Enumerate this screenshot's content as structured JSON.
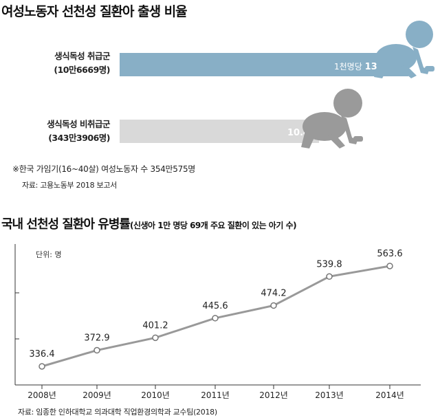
{
  "section1": {
    "title": "여성노동자 선천성 질환아 출생 비율",
    "note": "※한국 가임기(16~40살) 여성노동자 수 354만575명",
    "source": "자료: 고용노동부 2018 보고서"
  },
  "section2": {
    "title": "국내 선천성 질환아 유병률",
    "subtitle": "(신생아 1만 명당 69개 주요 질환이 있는 아기 수)",
    "unit": "단위: 명",
    "source": "자료: 임종한 인하대학교 의과대학 직업환경의학과 교수팀(2018)"
  },
  "chart_data": [
    {
      "type": "bar",
      "orientation": "horizontal",
      "title": "여성노동자 선천성 질환아 출생 비율",
      "categories": [
        {
          "line1": "생식독성 취급군",
          "line2": "(10만6669명)"
        },
        {
          "line1": "생식독성 비취급군",
          "line2": "(343만3906명)"
        }
      ],
      "values": [
        13.9,
        10.4
      ],
      "value_labels": [
        {
          "prefix": "1천명당 ",
          "value": "13.9명"
        },
        {
          "prefix": "",
          "value": "10.4명"
        }
      ],
      "colors": [
        "#88afc6",
        "#d9d9d9"
      ]
    },
    {
      "type": "line",
      "title": "국내 선천성 질환아 유병률",
      "x": [
        "2008년",
        "2009년",
        "2010년",
        "2011년",
        "2012년",
        "2013년",
        "2014년"
      ],
      "values": [
        336.4,
        372.9,
        401.2,
        445.6,
        474.2,
        539.8,
        563.6
      ],
      "labels": [
        "336.4",
        "372.9",
        "401.2",
        "445.6",
        "474.2",
        "539.8",
        "563.6"
      ],
      "ylim": [
        280,
        610
      ],
      "ylabel": "단위: 명",
      "line_color": "#999999"
    }
  ]
}
